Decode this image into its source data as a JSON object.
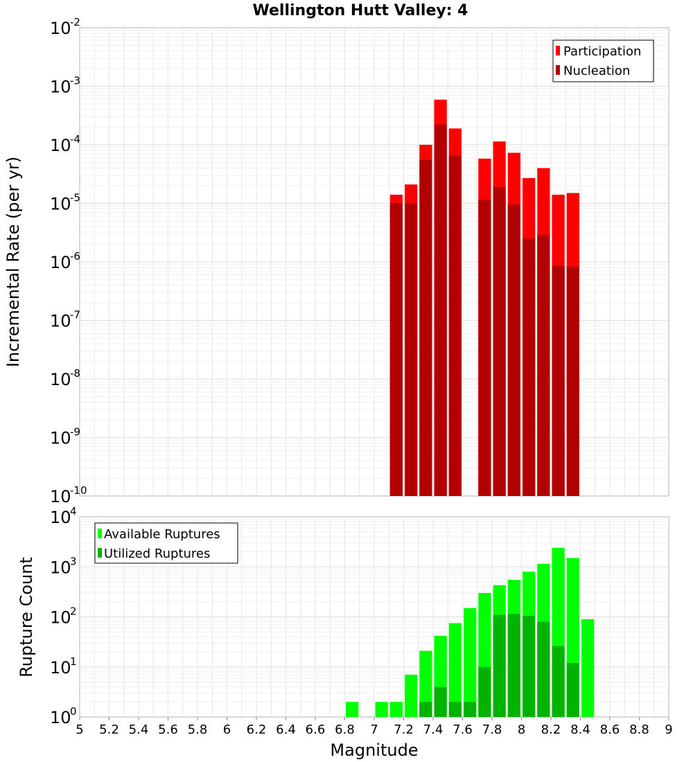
{
  "title": "Wellington Hutt Valley: 4",
  "xlabel": "Magnitude",
  "colors": {
    "participation": "#ff0000",
    "nucleation": "#b20000",
    "available": "#00ff00",
    "utilized": "#00b300",
    "grid": "#e6e6e6",
    "frame": "#b0b0b0"
  },
  "chart_data": [
    {
      "type": "bar",
      "title": "Wellington Hutt Valley: 4",
      "ylabel": "Incremental Rate (per yr)",
      "yscale": "log",
      "ylim_exp": [
        -10,
        -2
      ],
      "xlim": [
        5,
        9
      ],
      "bin_width": 0.1,
      "legend_position": "top-right",
      "grid": true,
      "series": [
        {
          "name": "Participation",
          "x": [
            7.15,
            7.25,
            7.35,
            7.45,
            7.55,
            7.75,
            7.85,
            7.95,
            8.05,
            8.15,
            8.25,
            8.35
          ],
          "values": [
            1.4e-05,
            2.1e-05,
            0.0001,
            0.00059,
            0.00019,
            5.8e-05,
            0.000114,
            7.3e-05,
            2.7e-05,
            4e-05,
            1.4e-05,
            1.5e-05
          ]
        },
        {
          "name": "Nucleation",
          "x": [
            7.15,
            7.25,
            7.35,
            7.45,
            7.55,
            7.75,
            7.85,
            7.95,
            8.05,
            8.15,
            8.25,
            8.35
          ],
          "values": [
            1e-05,
            1e-05,
            5.5e-05,
            0.00022,
            6.5e-05,
            1.15e-05,
            1.9e-05,
            9.5e-06,
            2.5e-06,
            2.9e-06,
            8.5e-07,
            8.3e-07
          ]
        }
      ]
    },
    {
      "type": "bar",
      "ylabel": "Rupture Count",
      "xlabel": "Magnitude",
      "yscale": "log",
      "ylim_exp": [
        0,
        4
      ],
      "xlim": [
        5,
        9
      ],
      "bin_width": 0.1,
      "legend_position": "top-left",
      "grid": true,
      "x_ticks": [
        "5",
        "5.2",
        "5.4",
        "5.6",
        "5.8",
        "6",
        "6.2",
        "6.4",
        "6.6",
        "6.8",
        "7",
        "7.2",
        "7.4",
        "7.6",
        "7.8",
        "8",
        "8.2",
        "8.4",
        "8.6",
        "8.8",
        "9"
      ],
      "series": [
        {
          "name": "Available Ruptures",
          "x": [
            6.85,
            7.05,
            7.15,
            7.25,
            7.35,
            7.45,
            7.55,
            7.65,
            7.75,
            7.85,
            7.95,
            8.05,
            8.15,
            8.25,
            8.35,
            8.45
          ],
          "values": [
            2,
            2,
            2,
            7,
            21,
            42,
            75,
            150,
            300,
            430,
            550,
            800,
            1150,
            2400,
            1500,
            90
          ]
        },
        {
          "name": "Utilized Ruptures",
          "x": [
            7.15,
            7.25,
            7.35,
            7.45,
            7.55,
            7.65,
            7.75,
            7.85,
            7.95,
            8.05,
            8.15,
            8.25,
            8.35
          ],
          "values": [
            1,
            1,
            2,
            4,
            2,
            2,
            10,
            110,
            115,
            105,
            80,
            26,
            12
          ]
        }
      ]
    }
  ]
}
